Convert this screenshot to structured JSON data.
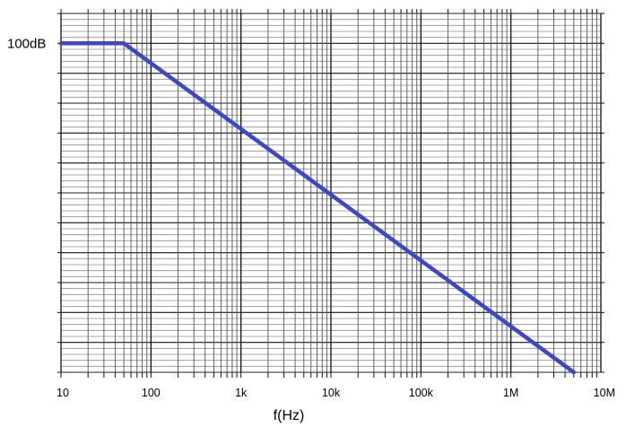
{
  "chart_data": {
    "type": "line",
    "title": "",
    "xlabel": "f(Hz)",
    "ylabel": "",
    "x_scale": "log",
    "xlim": [
      10,
      10000000
    ],
    "x_ticks": [
      {
        "value": 10,
        "label": "10"
      },
      {
        "value": 100,
        "label": "100"
      },
      {
        "value": 1000,
        "label": "1k"
      },
      {
        "value": 10000,
        "label": "10k"
      },
      {
        "value": 100000,
        "label": "100k"
      },
      {
        "value": 1000000,
        "label": "1M"
      },
      {
        "value": 10000000,
        "label": "10M"
      }
    ],
    "ylim": [
      -10,
      110
    ],
    "y_ticks": [
      {
        "value": 100,
        "label": "100dB"
      }
    ],
    "grid": true,
    "series": [
      {
        "color": "#3c48c8",
        "x": [
          10,
          50,
          5000000
        ],
        "y": [
          100,
          100,
          -10
        ]
      }
    ]
  }
}
